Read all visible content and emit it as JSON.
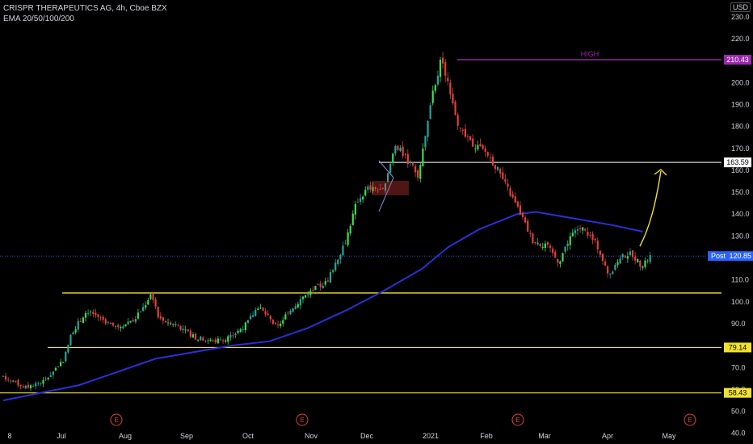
{
  "legend": {
    "symbol_line": "CRISPR THERAPEUTICS AG, 4h, Cboe BZX",
    "indicator_line": "EMA 20/50/100/200"
  },
  "currency_label": "USD",
  "colors": {
    "background": "#000000",
    "up_candle": "#26a69a",
    "up_candle_bright": "#3ddc52",
    "down_candle": "#e0413d",
    "ema": "#2b2fd6",
    "yellow_level": "#f0e130",
    "high_line": "#9c27b0",
    "white_level": "#ffffff",
    "post_line": "#2962ff",
    "arrow": "#f0e130"
  },
  "chart_data": {
    "type": "candlestick",
    "title": "CRISPR THERAPEUTICS AG, 4h, Cboe BZX",
    "y_axis": {
      "ylim": [
        35,
        235
      ],
      "ticks": [
        40,
        50,
        60,
        70,
        80,
        90,
        100,
        110,
        120,
        130,
        140,
        150,
        160,
        170,
        180,
        190,
        200,
        210,
        220,
        230
      ]
    },
    "x_axis": {
      "ticks": [
        "8",
        "Jul",
        "Aug",
        "Sep",
        "Oct",
        "Nov",
        "Dec",
        "2021",
        "Feb",
        "Mar",
        "Apr",
        "May"
      ]
    },
    "price_path": [
      {
        "t": 0,
        "p": 66
      },
      {
        "t": 0.3,
        "p": 63
      },
      {
        "t": 0.6,
        "p": 61
      },
      {
        "t": 1.1,
        "p": 64
      },
      {
        "t": 1.6,
        "p": 74
      },
      {
        "t": 1.8,
        "p": 86
      },
      {
        "t": 2.2,
        "p": 96
      },
      {
        "t": 2.6,
        "p": 92
      },
      {
        "t": 3.0,
        "p": 88
      },
      {
        "t": 3.5,
        "p": 93
      },
      {
        "t": 3.7,
        "p": 98
      },
      {
        "t": 3.9,
        "p": 104
      },
      {
        "t": 4.1,
        "p": 92
      },
      {
        "t": 4.5,
        "p": 90
      },
      {
        "t": 5.0,
        "p": 84
      },
      {
        "t": 5.5,
        "p": 82
      },
      {
        "t": 6.0,
        "p": 84
      },
      {
        "t": 6.4,
        "p": 90
      },
      {
        "t": 6.7,
        "p": 98
      },
      {
        "t": 6.9,
        "p": 94
      },
      {
        "t": 7.2,
        "p": 88
      },
      {
        "t": 7.5,
        "p": 96
      },
      {
        "t": 8.0,
        "p": 104
      },
      {
        "t": 8.5,
        "p": 109
      },
      {
        "t": 9.0,
        "p": 128
      },
      {
        "t": 9.3,
        "p": 146
      },
      {
        "t": 9.6,
        "p": 152
      },
      {
        "t": 10.0,
        "p": 150
      },
      {
        "t": 10.3,
        "p": 172
      },
      {
        "t": 10.6,
        "p": 165
      },
      {
        "t": 10.9,
        "p": 158
      },
      {
        "t": 11.1,
        "p": 176
      },
      {
        "t": 11.3,
        "p": 196
      },
      {
        "t": 11.5,
        "p": 210
      },
      {
        "t": 11.7,
        "p": 200
      },
      {
        "t": 12.0,
        "p": 178
      },
      {
        "t": 12.3,
        "p": 172
      },
      {
        "t": 12.7,
        "p": 168
      },
      {
        "t": 13.0,
        "p": 160
      },
      {
        "t": 13.3,
        "p": 150
      },
      {
        "t": 13.6,
        "p": 140
      },
      {
        "t": 13.9,
        "p": 128
      },
      {
        "t": 14.3,
        "p": 125
      },
      {
        "t": 14.6,
        "p": 118
      },
      {
        "t": 14.9,
        "p": 130
      },
      {
        "t": 15.2,
        "p": 134
      },
      {
        "t": 15.6,
        "p": 126
      },
      {
        "t": 15.9,
        "p": 112
      },
      {
        "t": 16.2,
        "p": 120
      },
      {
        "t": 16.5,
        "p": 122
      },
      {
        "t": 16.8,
        "p": 116
      },
      {
        "t": 17.0,
        "p": 120.85
      }
    ],
    "ema_path": [
      {
        "t": 0,
        "p": 55
      },
      {
        "t": 2,
        "p": 62
      },
      {
        "t": 4,
        "p": 74
      },
      {
        "t": 6,
        "p": 80
      },
      {
        "t": 7,
        "p": 82
      },
      {
        "t": 8,
        "p": 88
      },
      {
        "t": 9,
        "p": 96
      },
      {
        "t": 10,
        "p": 105
      },
      {
        "t": 11,
        "p": 115
      },
      {
        "t": 11.7,
        "p": 125
      },
      {
        "t": 12.5,
        "p": 133
      },
      {
        "t": 13.5,
        "p": 140
      },
      {
        "t": 14,
        "p": 141
      },
      {
        "t": 15,
        "p": 138
      },
      {
        "t": 16,
        "p": 135
      },
      {
        "t": 16.8,
        "p": 132
      }
    ],
    "levels": [
      {
        "name": "high",
        "value": 210.43,
        "label": "210.43",
        "text": "HIGH"
      },
      {
        "name": "resistance",
        "value": 163.59,
        "label": "163.59"
      },
      {
        "name": "post",
        "value": 120.85,
        "label": "Post",
        "price_label": "120.85"
      },
      {
        "name": "support-1",
        "value": 104
      },
      {
        "name": "support-2",
        "value": 79.14,
        "label": "79.14"
      },
      {
        "name": "support-3",
        "value": 58.43,
        "label": "58.43"
      }
    ],
    "earnings_markers": [
      "E",
      "E",
      "E",
      "E"
    ]
  }
}
